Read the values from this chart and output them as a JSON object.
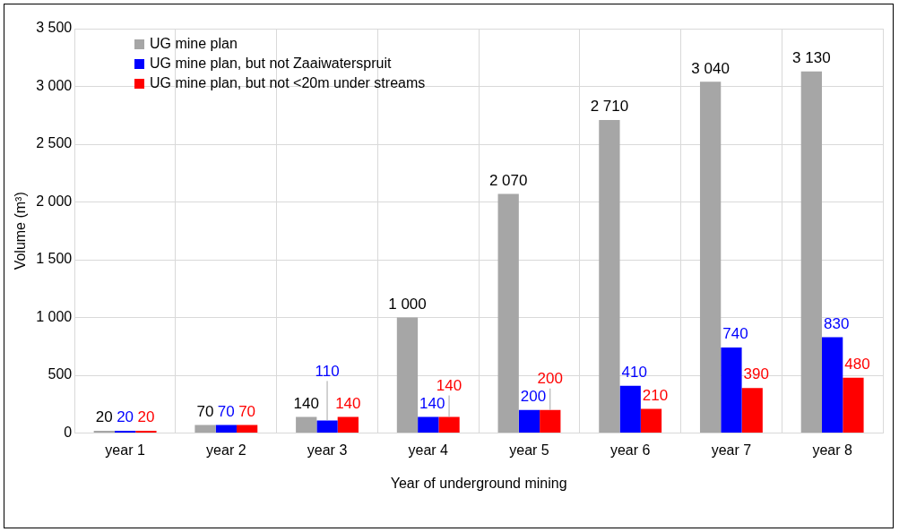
{
  "chart_data": {
    "type": "bar",
    "xlabel": "Year of underground mining",
    "ylabel": "Volume (m³)",
    "categories": [
      "year 1",
      "year 2",
      "year 3",
      "year 4",
      "year 5",
      "year 6",
      "year 7",
      "year 8"
    ],
    "series": [
      {
        "name": "UG mine plan",
        "color": "#a6a6a6",
        "values": [
          20,
          70,
          140,
          1000,
          2070,
          2710,
          3040,
          3130
        ],
        "value_labels": [
          "20",
          "70",
          "140",
          "1 000",
          "2 070",
          "2 710",
          "3 040",
          "3 130"
        ]
      },
      {
        "name": "UG mine plan, but not Zaaiwaterspruit",
        "color": "#0000ff",
        "values": [
          20,
          70,
          110,
          140,
          200,
          410,
          740,
          830
        ],
        "value_labels": [
          "20",
          "70",
          "110",
          "140",
          "200",
          "410",
          "740",
          "830"
        ]
      },
      {
        "name": "UG mine plan, but not <20m under streams",
        "color": "#ff0000",
        "values": [
          20,
          70,
          140,
          140,
          200,
          210,
          390,
          480
        ],
        "value_labels": [
          "20",
          "70",
          "140",
          "140",
          "200",
          "210",
          "390",
          "480"
        ]
      }
    ],
    "ylim": [
      0,
      3500
    ],
    "yticks": [
      0,
      {
        "value": 500,
        "label": "500"
      },
      {
        "value": 1000,
        "label": "1 000"
      },
      {
        "value": 1500,
        "label": "1 500"
      },
      {
        "value": 2000,
        "label": "2 000"
      },
      {
        "value": 2500,
        "label": "2 500"
      },
      {
        "value": 3000,
        "label": "3 000"
      },
      {
        "value": 3500,
        "label": "3 500"
      }
    ],
    "grid": true,
    "legend": "top left"
  }
}
